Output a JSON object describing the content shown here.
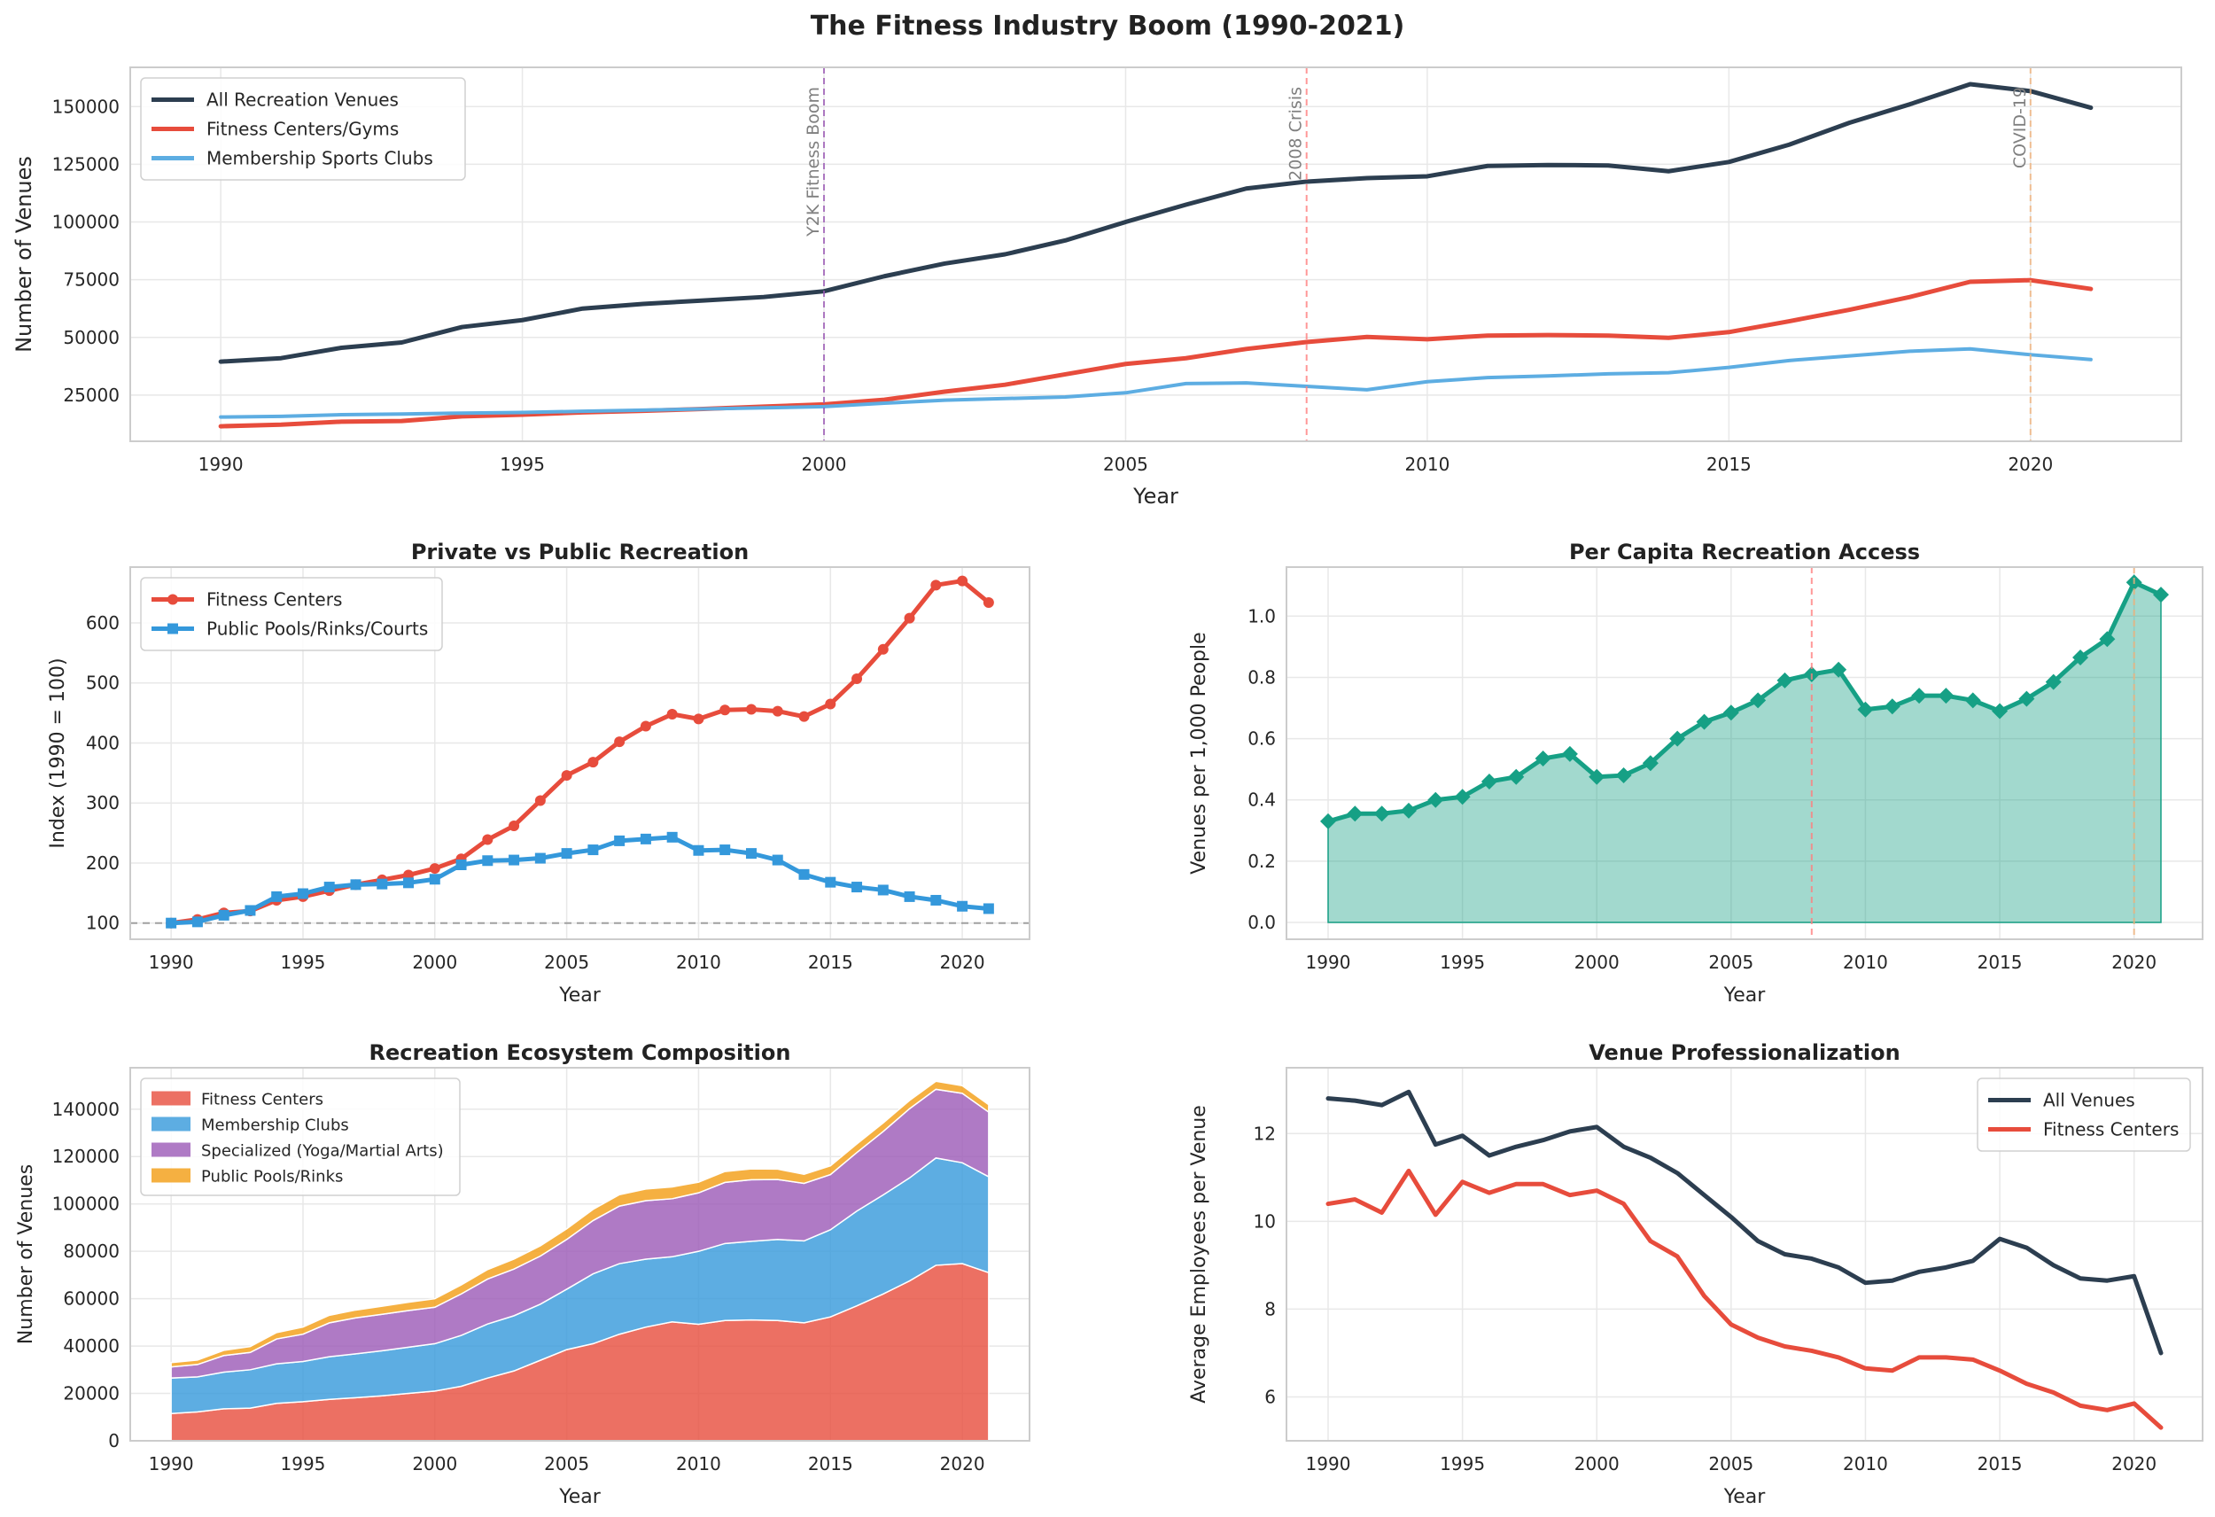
{
  "suptitle": "The Fitness Industry Boom (1990-2021)",
  "years": [
    1990,
    1991,
    1992,
    1993,
    1994,
    1995,
    1996,
    1997,
    1998,
    1999,
    2000,
    2001,
    2002,
    2003,
    2004,
    2005,
    2006,
    2007,
    2008,
    2009,
    2010,
    2011,
    2012,
    2013,
    2014,
    2015,
    2016,
    2017,
    2018,
    2019,
    2020,
    2021
  ],
  "chart_data": [
    {
      "id": "top",
      "type": "line",
      "title": "",
      "xlabel": "Year",
      "ylabel": "Number of Venues",
      "xlim": [
        1988.5,
        2022.5
      ],
      "ylim": [
        5000,
        167000
      ],
      "xticks": [
        1990,
        1995,
        2000,
        2005,
        2010,
        2015,
        2020
      ],
      "yticks": [
        25000,
        50000,
        75000,
        100000,
        125000,
        150000
      ],
      "legend": "upper-left",
      "series": [
        {
          "name": "All Recreation Venues",
          "color": "#2c3e50",
          "width": 5,
          "values": [
            39500,
            41000,
            45500,
            47800,
            54500,
            57500,
            62500,
            64500,
            66000,
            67500,
            70000,
            76500,
            82000,
            86000,
            92000,
            100000,
            107500,
            114500,
            117500,
            119000,
            119800,
            124300,
            124700,
            124500,
            122000,
            126000,
            133500,
            143000,
            151000,
            159700,
            156700,
            149500
          ]
        },
        {
          "name": "Fitness Centers/Gyms",
          "color": "#e74c3c",
          "width": 5,
          "values": [
            11500,
            12200,
            13500,
            13800,
            15800,
            16500,
            17500,
            18200,
            19000,
            20000,
            21000,
            23000,
            26500,
            29500,
            34000,
            38500,
            41000,
            45000,
            48000,
            50200,
            49200,
            50800,
            51000,
            50800,
            49800,
            52300,
            57000,
            62000,
            67500,
            74100,
            74800,
            71000
          ]
        },
        {
          "name": "Membership Sports Clubs",
          "color": "#5dade2",
          "width": 4,
          "values": [
            15500,
            15800,
            16500,
            16800,
            17200,
            17500,
            18000,
            18500,
            19000,
            19500,
            20000,
            21500,
            22800,
            23500,
            24200,
            26000,
            30000,
            30300,
            28800,
            27300,
            30800,
            32600,
            33300,
            34200,
            34700,
            37000,
            40000,
            42000,
            44000,
            45000,
            42500,
            40400
          ]
        }
      ],
      "annotations": [
        {
          "x": 2000,
          "label": "Y2K Fitness Boom",
          "color": "#9b59b6"
        },
        {
          "x": 2008,
          "label": "2008 Crisis",
          "color": "#ff7f7f"
        },
        {
          "x": 2020,
          "label": "COVID-19",
          "color": "#f0b27a"
        }
      ]
    },
    {
      "id": "private",
      "type": "line",
      "title": "Private vs Public Recreation",
      "xlabel": "Year",
      "ylabel": "Index (1990 = 100)",
      "xlim": [
        1988.45,
        2022.55
      ],
      "ylim": [
        73,
        693
      ],
      "xticks": [
        1990,
        1995,
        2000,
        2005,
        2010,
        2015,
        2020
      ],
      "yticks": [
        100,
        200,
        300,
        400,
        500,
        600
      ],
      "legend": "upper-left",
      "baseline": 100,
      "series": [
        {
          "name": "Fitness Centers",
          "color": "#e74c3c",
          "marker": "circle",
          "values": [
            100,
            106,
            117,
            120,
            138,
            144,
            154,
            164,
            172,
            180,
            191,
            207,
            239,
            262,
            304,
            346,
            368,
            402,
            428,
            448,
            440,
            455,
            456,
            453,
            444,
            465,
            507,
            556,
            608,
            663,
            670,
            634
          ]
        },
        {
          "name": "Public Pools/Rinks/Courts",
          "color": "#3498db",
          "marker": "square",
          "values": [
            100,
            102,
            113,
            121,
            144,
            149,
            160,
            164,
            165,
            167,
            173,
            197,
            204,
            205,
            208,
            216,
            222,
            237,
            240,
            243,
            221,
            222,
            216,
            205,
            181,
            168,
            160,
            155,
            144,
            138,
            128,
            124
          ]
        }
      ]
    },
    {
      "id": "percapita",
      "type": "area",
      "title": "Per Capita Recreation Access",
      "xlabel": "Year",
      "ylabel": "Venues per 1,000 People",
      "xlim": [
        1988.45,
        2022.55
      ],
      "ylim": [
        -0.055,
        1.16
      ],
      "xticks": [
        1990,
        1995,
        2000,
        2005,
        2010,
        2015,
        2020
      ],
      "yticks": [
        0.0,
        0.2,
        0.4,
        0.6,
        0.8,
        1.0
      ],
      "color": "#16a085",
      "values": [
        0.33,
        0.355,
        0.355,
        0.365,
        0.4,
        0.41,
        0.46,
        0.475,
        0.535,
        0.55,
        0.475,
        0.48,
        0.52,
        0.6,
        0.655,
        0.685,
        0.725,
        0.79,
        0.81,
        0.825,
        0.695,
        0.705,
        0.74,
        0.74,
        0.725,
        0.69,
        0.73,
        0.785,
        0.865,
        0.925,
        1.11,
        1.07
      ],
      "vlines": [
        {
          "x": 2008,
          "color": "#ff7f7f"
        },
        {
          "x": 2020,
          "color": "#f0b27a"
        }
      ]
    },
    {
      "id": "ecosystem",
      "type": "area",
      "stacked": true,
      "title": "Recreation Ecosystem Composition",
      "xlabel": "Year",
      "ylabel": "Number of Venues",
      "xlim": [
        1988.45,
        2022.55
      ],
      "ylim": [
        0,
        157500
      ],
      "xticks": [
        1990,
        1995,
        2000,
        2005,
        2010,
        2015,
        2020
      ],
      "yticks": [
        0,
        20000,
        40000,
        60000,
        80000,
        100000,
        120000,
        140000
      ],
      "legend": "upper-left",
      "series": [
        {
          "name": "Fitness Centers",
          "color": "#e74c3c",
          "values": [
            11500,
            12200,
            13500,
            13800,
            15800,
            16500,
            17500,
            18200,
            19000,
            20000,
            21000,
            23000,
            26500,
            29500,
            34000,
            38500,
            41000,
            45000,
            48000,
            50200,
            49200,
            50800,
            51000,
            50800,
            49800,
            52300,
            57000,
            62000,
            67500,
            74100,
            74800,
            71000
          ]
        },
        {
          "name": "Membership Clubs",
          "color": "#3498db",
          "values": [
            15000,
            14800,
            15500,
            16200,
            16700,
            17000,
            18000,
            18500,
            19000,
            19500,
            20000,
            21500,
            22800,
            23300,
            23700,
            25500,
            29500,
            29800,
            28700,
            27500,
            30800,
            32500,
            33200,
            34200,
            34600,
            36800,
            40000,
            41800,
            43500,
            45300,
            42600,
            40500
          ]
        },
        {
          "name": "Specialized (Yoga/Martial Arts)",
          "color": "#9b59b6",
          "values": [
            4700,
            5200,
            7000,
            7300,
            10500,
            11500,
            14300,
            15200,
            15400,
            15500,
            15400,
            17500,
            19000,
            19700,
            20300,
            21000,
            22500,
            24300,
            24700,
            24500,
            24700,
            25800,
            26000,
            25300,
            24300,
            23300,
            24700,
            26800,
            29200,
            29000,
            29300,
            27300
          ]
        },
        {
          "name": "Public Pools/Rinks",
          "color": "#f39c12",
          "values": [
            1800,
            1900,
            2200,
            2500,
            2700,
            3000,
            3200,
            3300,
            3400,
            3500,
            3600,
            3800,
            4000,
            4200,
            4300,
            4500,
            4700,
            4800,
            4900,
            5000,
            4500,
            4600,
            4600,
            4400,
            3800,
            3700,
            3600,
            3600,
            3500,
            3400,
            3200,
            3100
          ]
        }
      ]
    },
    {
      "id": "professionalization",
      "type": "line",
      "title": "Venue Professionalization",
      "xlabel": "Year",
      "ylabel": "Average Employees per Venue",
      "xlim": [
        1988.45,
        2022.55
      ],
      "ylim": [
        5.0,
        13.5
      ],
      "xticks": [
        1990,
        1995,
        2000,
        2005,
        2010,
        2015,
        2020
      ],
      "yticks": [
        6,
        8,
        10,
        12
      ],
      "legend": "upper-right",
      "series": [
        {
          "name": "All Venues",
          "color": "#2c3e50",
          "values": [
            12.8,
            12.75,
            12.65,
            12.95,
            11.75,
            11.95,
            11.5,
            11.7,
            11.85,
            12.05,
            12.15,
            11.7,
            11.45,
            11.1,
            10.6,
            10.1,
            9.55,
            9.25,
            9.15,
            8.95,
            8.6,
            8.65,
            8.85,
            8.95,
            9.1,
            9.6,
            9.4,
            9.0,
            8.7,
            8.65,
            8.75,
            7.0
          ]
        },
        {
          "name": "Fitness Centers",
          "color": "#e74c3c",
          "values": [
            10.4,
            10.5,
            10.2,
            11.15,
            10.15,
            10.9,
            10.65,
            10.85,
            10.85,
            10.6,
            10.7,
            10.4,
            9.55,
            9.2,
            8.3,
            7.65,
            7.35,
            7.15,
            7.05,
            6.9,
            6.65,
            6.6,
            6.9,
            6.9,
            6.85,
            6.6,
            6.3,
            6.1,
            5.8,
            5.7,
            5.85,
            5.3
          ]
        }
      ]
    }
  ]
}
